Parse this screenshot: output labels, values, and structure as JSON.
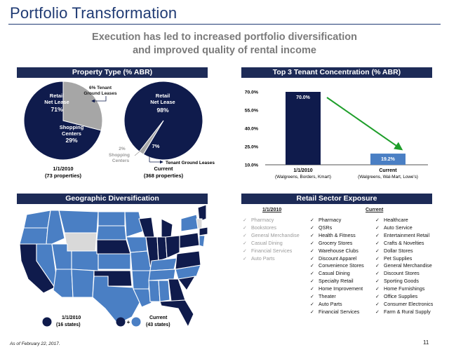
{
  "header": {
    "title": "Portfolio Transformation",
    "subtitle_line1": "Execution has led to increased portfolio diversification",
    "subtitle_line2": "and improved quality of rental income"
  },
  "property_type": {
    "banner": "Property Type (% ABR)",
    "pie_2010": {
      "date": "1/1/2010",
      "note": "(73 properties)",
      "retail_label_1": "Retail",
      "retail_label_2": "Net Lease",
      "retail_pct": "71%",
      "shopping_label_1": "Shopping",
      "shopping_label_2": "Centers",
      "shopping_pct": "29%",
      "tenant_label_1": "6% Tenant",
      "tenant_label_2": "Ground Leases",
      "slices": [
        {
          "name": "Retail Net Lease",
          "value": 71,
          "color": "#0f1b4c"
        },
        {
          "name": "Shopping Centers",
          "value": 29,
          "color": "#a6a6a6"
        }
      ]
    },
    "pie_current": {
      "date": "Current",
      "note": "(368 properties)",
      "retail_label_1": "Retail",
      "retail_label_2": "Net Lease",
      "retail_pct": "98%",
      "shopping_pct": "2%",
      "shopping_label_1": "Shopping",
      "shopping_label_2": "Centers",
      "tenant_pct": "7%",
      "tenant_label": "Tenant Ground Leases",
      "slices": [
        {
          "name": "Retail Net Lease",
          "value": 98,
          "color": "#0f1b4c"
        },
        {
          "name": "Shopping Centers",
          "value": 2,
          "color": "#a6a6a6"
        }
      ]
    }
  },
  "chart_data": {
    "type": "bar",
    "title": "Top 3 Tenant Concentration (% ABR)",
    "categories": [
      "1/1/2010",
      "Current"
    ],
    "category_notes": [
      "(Walgreens, Borders, Kmart)",
      "(Walgreens, Wal-Mart, Lowe's)"
    ],
    "values": [
      70.0,
      19.2
    ],
    "value_labels": [
      "70.0%",
      "19.2%"
    ],
    "colors": [
      "#0f1b4c",
      "#4a7fc4"
    ],
    "ylim": [
      10.0,
      70.0
    ],
    "yticks": [
      10.0,
      25.0,
      40.0,
      55.0,
      70.0
    ],
    "ytick_labels": [
      "10.0%",
      "25.0%",
      "40.0%",
      "55.0%",
      "70.0%"
    ],
    "trend_arrow_color": "#1e9e2a",
    "grid": false
  },
  "geo": {
    "banner": "Geographic Diversification",
    "legend_2010_date": "1/1/2010",
    "legend_2010_note": "(16 states)",
    "legend_current_date": "Current",
    "legend_current_note": "(43 states)",
    "plus": "+",
    "colors": {
      "dark": "#0f1b4c",
      "light": "#4a7fc4",
      "none": "#d9d9d9"
    }
  },
  "sector": {
    "banner": "Retail Sector Exposure",
    "head_2010": "1/1/2010",
    "head_current": "Current",
    "check": "✓",
    "list_2010": [
      "Pharmacy",
      "Bookstores",
      "General Merchandise",
      "Casual Dining",
      "Financial Services",
      "Auto Parts"
    ],
    "list_current_a": [
      "Pharmacy",
      "QSRs",
      "Health & Fitness",
      "Grocery Stores",
      "Warehouse Clubs",
      "Discount Apparel",
      "Convenience Stores",
      "Casual Dining",
      "Specialty Retail",
      "Home Improvement",
      "Theater",
      "Auto Parts",
      "Financial Services"
    ],
    "list_current_b": [
      "Healthcare",
      "Auto Service",
      "Entertainment Retail",
      "Crafts & Novelties",
      "Dollar Stores",
      "Pet Supplies",
      "General Merchandise",
      "Discount Stores",
      "Sporting Goods",
      "Home Furnishings",
      "Office Supplies",
      "Consumer Electronics",
      "Farm & Rural Supply"
    ]
  },
  "footer": {
    "note": "As of February 22, 2017.",
    "page": "11"
  }
}
